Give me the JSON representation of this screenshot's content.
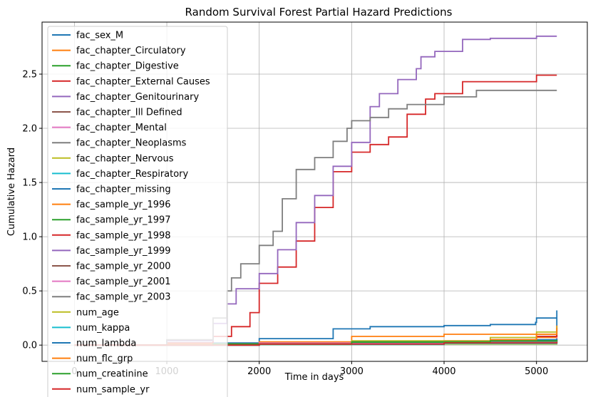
{
  "chart_data": {
    "type": "line",
    "title": "Random Survival Forest Partial Hazard Predictions",
    "xlabel": "Time in days",
    "ylabel": "Cumulative Hazard",
    "xlim": [
      -350,
      5550
    ],
    "ylim": [
      -0.15,
      2.98
    ],
    "xticks": [
      0,
      1000,
      2000,
      3000,
      4000,
      5000
    ],
    "yticks": [
      0.0,
      0.5,
      1.0,
      1.5,
      2.0,
      2.5
    ],
    "grid": true,
    "legend_position": "upper-left",
    "series": [
      {
        "name": "fac_sex_M",
        "color": "#1f77b4",
        "x": [
          0,
          1000,
          2000,
          2800,
          3200,
          4000,
          4500,
          4990,
          5000,
          5220
        ],
        "y": [
          0,
          0.02,
          0.06,
          0.15,
          0.17,
          0.18,
          0.19,
          0.21,
          0.25,
          0.25
        ]
      },
      {
        "name": "fac_chapter_Circulatory",
        "color": "#ff7f0e",
        "x": [
          0,
          1000,
          2000,
          3000,
          4000,
          5000,
          5220
        ],
        "y": [
          0,
          0.01,
          0.03,
          0.08,
          0.1,
          0.1,
          0.1
        ]
      },
      {
        "name": "fac_chapter_Digestive",
        "color": "#2ca02c",
        "x": [
          0,
          1500,
          3000,
          4500,
          5220
        ],
        "y": [
          0,
          0.005,
          0.02,
          0.03,
          0.04
        ]
      },
      {
        "name": "fac_chapter_External Causes",
        "color": "#d62728",
        "x": [
          0,
          1000,
          1500,
          1700,
          1900,
          2000,
          2200,
          2400,
          2600,
          2800,
          3000,
          3200,
          3400,
          3600,
          3800,
          3900,
          4200,
          5000,
          5220
        ],
        "y": [
          0,
          0.02,
          0.08,
          0.17,
          0.3,
          0.57,
          0.72,
          0.96,
          1.27,
          1.6,
          1.78,
          1.85,
          1.92,
          2.13,
          2.27,
          2.32,
          2.43,
          2.49,
          2.49
        ]
      },
      {
        "name": "fac_chapter_Genitourinary",
        "color": "#9467bd",
        "x": [
          0,
          1000,
          1500,
          1650,
          1750,
          2000,
          2200,
          2400,
          2600,
          2800,
          3000,
          3200,
          3300,
          3500,
          3700,
          3750,
          3900,
          4200,
          4500,
          5000,
          5220
        ],
        "y": [
          0,
          0.04,
          0.2,
          0.38,
          0.52,
          0.66,
          0.88,
          1.13,
          1.38,
          1.65,
          1.87,
          2.2,
          2.32,
          2.45,
          2.55,
          2.66,
          2.71,
          2.82,
          2.83,
          2.85,
          2.85
        ]
      },
      {
        "name": "fac_chapter_Ill Defined",
        "color": "#8c564b",
        "x": [
          0,
          2000,
          4000,
          5220
        ],
        "y": [
          0,
          0.01,
          0.03,
          0.05
        ]
      },
      {
        "name": "fac_chapter_Mental",
        "color": "#e377c2",
        "x": [
          0,
          2000,
          4000,
          5220
        ],
        "y": [
          0,
          0.02,
          0.04,
          0.06
        ]
      },
      {
        "name": "fac_chapter_Neoplasms",
        "color": "#7f7f7f",
        "x": [
          0,
          1000,
          1500,
          1650,
          1700,
          1800,
          2000,
          2150,
          2250,
          2400,
          2600,
          2800,
          2950,
          3000,
          3200,
          3400,
          3600,
          4000,
          4350,
          5000,
          5220
        ],
        "y": [
          0,
          0.05,
          0.25,
          0.5,
          0.62,
          0.75,
          0.92,
          1.05,
          1.35,
          1.62,
          1.73,
          1.88,
          2.0,
          2.07,
          2.1,
          2.18,
          2.22,
          2.29,
          2.35,
          2.35,
          2.35
        ]
      },
      {
        "name": "fac_chapter_Nervous",
        "color": "#bcbd22",
        "x": [
          0,
          2000,
          4000,
          5220
        ],
        "y": [
          0,
          0.005,
          0.01,
          0.02
        ]
      },
      {
        "name": "fac_chapter_Respiratory",
        "color": "#17becf",
        "x": [
          0,
          2000,
          4000,
          5220
        ],
        "y": [
          0,
          0.005,
          0.015,
          0.02
        ]
      },
      {
        "name": "fac_chapter_missing",
        "color": "#1f77b4",
        "x": [
          0,
          1500,
          3000,
          4500,
          5000,
          5220
        ],
        "y": [
          0,
          0.01,
          0.03,
          0.05,
          0.08,
          0.32
        ]
      },
      {
        "name": "fac_sample_yr_1996",
        "color": "#ff7f0e",
        "x": [
          0,
          1500,
          3000,
          4500,
          5000,
          5220
        ],
        "y": [
          0,
          0.01,
          0.03,
          0.05,
          0.07,
          0.18
        ]
      },
      {
        "name": "fac_sample_yr_1997",
        "color": "#2ca02c",
        "x": [
          0,
          1500,
          3000,
          4500,
          5220
        ],
        "y": [
          0,
          0.01,
          0.02,
          0.03,
          0.05
        ]
      },
      {
        "name": "fac_sample_yr_1998",
        "color": "#d62728",
        "x": [
          0,
          1500,
          3000,
          4500,
          5000,
          5220
        ],
        "y": [
          0,
          0.01,
          0.03,
          0.05,
          0.08,
          0.1
        ]
      },
      {
        "name": "fac_sample_yr_1999",
        "color": "#9467bd",
        "x": [
          0,
          2000,
          4000,
          5220
        ],
        "y": [
          0,
          0.01,
          0.03,
          0.04
        ]
      },
      {
        "name": "fac_sample_yr_2000",
        "color": "#8c564b",
        "x": [
          0,
          2000,
          4000,
          5220
        ],
        "y": [
          0,
          0.01,
          0.02,
          0.03
        ]
      },
      {
        "name": "fac_sample_yr_2001",
        "color": "#e377c2",
        "x": [
          0,
          2000,
          4000,
          5220
        ],
        "y": [
          0,
          0.015,
          0.04,
          0.07
        ]
      },
      {
        "name": "fac_sample_yr_2003",
        "color": "#7f7f7f",
        "x": [
          0,
          2000,
          4000,
          5220
        ],
        "y": [
          0,
          0.01,
          0.03,
          0.06
        ]
      },
      {
        "name": "num_age",
        "color": "#bcbd22",
        "x": [
          0,
          1500,
          3000,
          4500,
          5000,
          5220
        ],
        "y": [
          0,
          0.01,
          0.04,
          0.07,
          0.12,
          0.17
        ]
      },
      {
        "name": "num_kappa",
        "color": "#17becf",
        "x": [
          0,
          2000,
          4000,
          5220
        ],
        "y": [
          0,
          0.01,
          0.02,
          0.03
        ]
      },
      {
        "name": "num_lambda",
        "color": "#1f77b4",
        "x": [
          0,
          1500,
          3000,
          4500,
          5000,
          5220
        ],
        "y": [
          0,
          0.01,
          0.03,
          0.04,
          0.05,
          0.06
        ]
      },
      {
        "name": "num_flc_grp",
        "color": "#ff7f0e",
        "x": [
          0,
          1500,
          3000,
          4500,
          5000,
          5220
        ],
        "y": [
          0,
          0.01,
          0.03,
          0.05,
          0.1,
          0.16
        ]
      },
      {
        "name": "num_creatinine",
        "color": "#2ca02c",
        "x": [
          0,
          1500,
          3000,
          4500,
          5220
        ],
        "y": [
          0,
          0.01,
          0.03,
          0.04,
          0.05
        ]
      },
      {
        "name": "num_sample_yr",
        "color": "#d62728",
        "x": [
          0,
          2000,
          4000,
          5220
        ],
        "y": [
          0,
          0.01,
          0.02,
          0.03
        ]
      }
    ]
  }
}
